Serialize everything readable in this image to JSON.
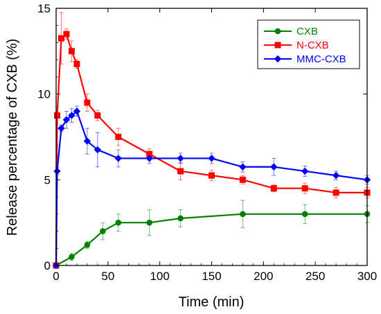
{
  "chart_data": {
    "type": "line",
    "title": "",
    "xlabel": "Time (min)",
    "ylabel": "Release percentage of CXB (%)",
    "xlim": [
      0,
      300
    ],
    "ylim": [
      0,
      15
    ],
    "xticks": [
      0,
      50,
      100,
      150,
      200,
      250,
      300
    ],
    "yticks": [
      0,
      5,
      10,
      15
    ],
    "xtick_labels": [
      "0",
      "50",
      "100",
      "150",
      "200",
      "250",
      "300"
    ],
    "ytick_labels": [
      "0",
      "5",
      "10",
      "15"
    ],
    "grid": false,
    "legend": "top-right",
    "series": [
      {
        "name": "CXB",
        "color": "#008000",
        "marker": "circle",
        "x": [
          0,
          15,
          30,
          45,
          60,
          90,
          120,
          180,
          240,
          300
        ],
        "y": [
          0,
          0.5,
          1.2,
          2.0,
          2.5,
          2.5,
          2.75,
          3.0,
          3.0,
          3.0
        ],
        "err": [
          0,
          0.2,
          0.2,
          0.5,
          0.5,
          0.75,
          0.5,
          0.8,
          0.55,
          0.5
        ]
      },
      {
        "name": "N-CXB",
        "color": "#ff0000",
        "marker": "square",
        "x": [
          0,
          1,
          5,
          10,
          15,
          20,
          30,
          40,
          60,
          90,
          120,
          150,
          180,
          210,
          240,
          270,
          300
        ],
        "y": [
          0,
          8.75,
          13.25,
          13.5,
          12.5,
          11.75,
          9.5,
          8.75,
          7.5,
          6.5,
          5.5,
          5.25,
          5.0,
          4.5,
          4.5,
          4.25,
          4.25
        ],
        "err": [
          0,
          0.5,
          1.5,
          0.3,
          0.6,
          0.25,
          0.5,
          0.3,
          0.5,
          0.3,
          0.5,
          0.3,
          0.25,
          0.2,
          0.3,
          0.3,
          0.3
        ]
      },
      {
        "name": "MMC-CXB",
        "color": "#0000ff",
        "marker": "diamond",
        "x": [
          0,
          1,
          5,
          10,
          15,
          20,
          30,
          40,
          60,
          90,
          120,
          150,
          180,
          210,
          240,
          270,
          300
        ],
        "y": [
          0,
          5.5,
          8.0,
          8.5,
          8.75,
          9.0,
          7.25,
          6.75,
          6.25,
          6.25,
          6.25,
          6.25,
          5.75,
          5.75,
          5.5,
          5.25,
          5.0
        ],
        "err": [
          0,
          0.2,
          0.2,
          0.5,
          0.4,
          0.3,
          0.75,
          1.0,
          0.5,
          0.3,
          0.3,
          0.3,
          0.3,
          0.5,
          0.3,
          0.25,
          0.25
        ]
      }
    ]
  }
}
